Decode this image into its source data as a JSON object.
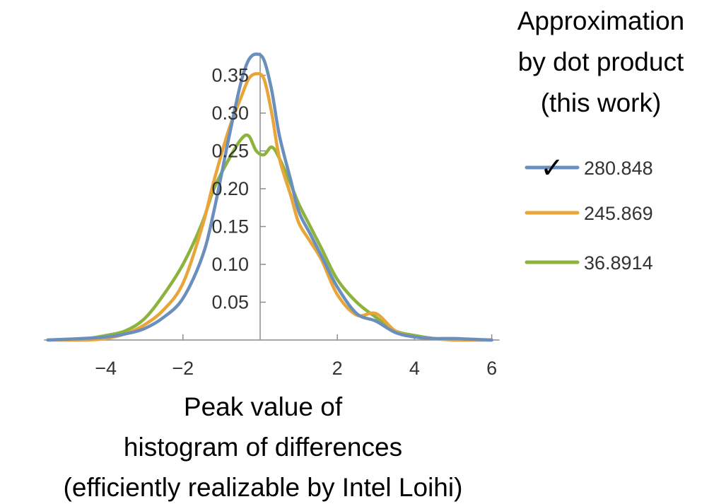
{
  "chart_data": {
    "type": "line",
    "title": "",
    "xlabel_lines": [
      "Peak value of",
      "histogram of differences",
      "(efficiently realizable by Intel Loihi)"
    ],
    "ylabel": "",
    "legend_title_lines": [
      "Approximation",
      "by dot product",
      "(this work)"
    ],
    "legend_placement": "right",
    "grid": false,
    "xlim": [
      -5.6,
      6.2
    ],
    "ylim": [
      0,
      0.38
    ],
    "x_ticks": [
      -4,
      -2,
      2,
      4,
      6
    ],
    "x_tick_labels": [
      "−4",
      "−2",
      "2",
      "4",
      "6"
    ],
    "y_ticks": [
      0.05,
      0.1,
      0.15,
      0.2,
      0.25,
      0.3,
      0.35
    ],
    "y_tick_labels": [
      "0.05",
      "0.10",
      "0.15",
      "0.20",
      "0.25",
      "0.30",
      "0.35"
    ],
    "series": [
      {
        "name": "280.848",
        "color": "#6b8fbd",
        "marked": true,
        "marker_symbol": "✓",
        "x": [
          -5.5,
          -4.6,
          -4,
          -3.5,
          -3,
          -2.5,
          -2,
          -1.5,
          -1.2,
          -0.8,
          -0.5,
          -0.3,
          -0.1,
          0.1,
          0.3,
          0.5,
          0.8,
          1,
          1.3,
          1.6,
          2,
          2.5,
          3,
          3.5,
          4,
          4.5,
          5,
          5.5,
          6
        ],
        "y": [
          0,
          0.002,
          0.004,
          0.008,
          0.015,
          0.03,
          0.055,
          0.11,
          0.17,
          0.27,
          0.34,
          0.37,
          0.378,
          0.37,
          0.33,
          0.27,
          0.21,
          0.17,
          0.14,
          0.11,
          0.07,
          0.035,
          0.025,
          0.01,
          0.004,
          0.002,
          0.002,
          0.001,
          0
        ]
      },
      {
        "name": "245.869",
        "color": "#e8a53a",
        "marked": false,
        "x": [
          -5.5,
          -4.5,
          -4,
          -3.5,
          -3,
          -2.5,
          -2,
          -1.5,
          -1.2,
          -0.8,
          -0.5,
          -0.3,
          -0.1,
          0.1,
          0.3,
          0.5,
          0.8,
          1,
          1.3,
          1.6,
          2,
          2.5,
          3,
          3.5,
          4,
          4.5,
          5,
          5.5,
          6
        ],
        "y": [
          0,
          0,
          0.002,
          0.008,
          0.02,
          0.04,
          0.075,
          0.15,
          0.21,
          0.28,
          0.32,
          0.345,
          0.352,
          0.345,
          0.3,
          0.24,
          0.19,
          0.155,
          0.13,
          0.105,
          0.06,
          0.033,
          0.035,
          0.012,
          0.004,
          0.002,
          0,
          0,
          0
        ]
      },
      {
        "name": "36.8914",
        "color": "#8cb33e",
        "marked": false,
        "x": [
          -5.5,
          -4.5,
          -4,
          -3.5,
          -3,
          -2.5,
          -2,
          -1.5,
          -1.2,
          -0.8,
          -0.5,
          -0.3,
          -0.1,
          0.1,
          0.3,
          0.5,
          0.8,
          1,
          1.3,
          1.6,
          2,
          2.5,
          3,
          3.5,
          4,
          4.5,
          5,
          5.5,
          6
        ],
        "y": [
          0,
          0.002,
          0.006,
          0.012,
          0.028,
          0.06,
          0.1,
          0.155,
          0.2,
          0.24,
          0.265,
          0.27,
          0.25,
          0.245,
          0.255,
          0.24,
          0.205,
          0.18,
          0.15,
          0.12,
          0.08,
          0.05,
          0.03,
          0.012,
          0.006,
          0.002,
          0,
          0,
          0
        ]
      }
    ]
  }
}
